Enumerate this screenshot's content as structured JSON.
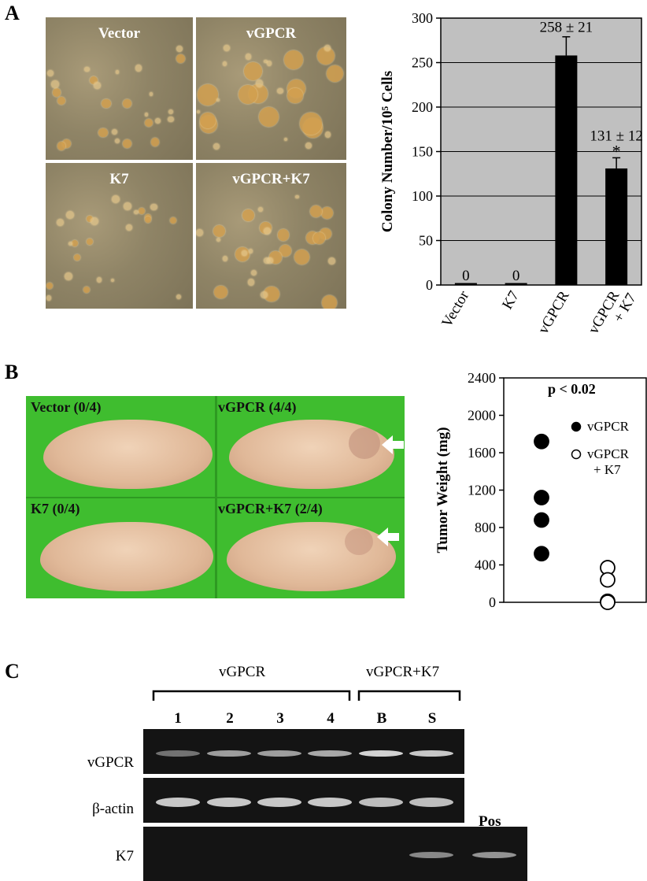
{
  "panels": {
    "a": "A",
    "b": "B",
    "c": "C"
  },
  "micrographs": [
    {
      "label": "Vector"
    },
    {
      "label": "vGPCR"
    },
    {
      "label": "K7"
    },
    {
      "label": "vGPCR+K7"
    }
  ],
  "mice": [
    {
      "label": "Vector (0/4)",
      "tumor": false
    },
    {
      "label": "vGPCR (4/4)",
      "tumor": true
    },
    {
      "label": "K7 (0/4)",
      "tumor": false
    },
    {
      "label": "vGPCR+K7 (2/4)",
      "tumor": true
    }
  ],
  "gel": {
    "group_labels": [
      "vGPCR",
      "vGPCR+K7"
    ],
    "lanes": [
      "1",
      "2",
      "3",
      "4",
      "B",
      "S"
    ],
    "rows": [
      {
        "label": "vGPCR",
        "intensity": [
          0.45,
          0.65,
          0.65,
          0.7,
          0.9,
          0.85
        ]
      },
      {
        "label": "β-actin",
        "intensity": [
          0.85,
          0.85,
          0.85,
          0.85,
          0.8,
          0.8
        ]
      },
      {
        "label": "K7",
        "intensity": [
          0,
          0,
          0,
          0,
          0,
          0.55
        ],
        "pos_intensity": 0.6
      }
    ],
    "pos_label": "Pos"
  },
  "chart_data": [
    {
      "type": "bar",
      "categories": [
        "Vector",
        "K7",
        "vGPCR",
        "vGPCR\n+ K7"
      ],
      "values": [
        0,
        0,
        258,
        131
      ],
      "errors": [
        0,
        0,
        21,
        12
      ],
      "bar_labels": [
        "0",
        "0",
        "258 ± 21",
        "131 ± 12"
      ],
      "significance": [
        "",
        "",
        "",
        "*"
      ],
      "ylabel": "Colony Number/10⁵ Cells",
      "ylim": [
        0,
        300
      ],
      "yticks": [
        0,
        50,
        100,
        150,
        200,
        250,
        300
      ],
      "grid": true,
      "background": "#c0c0c0",
      "bar_color": "#000000"
    },
    {
      "type": "scatter",
      "categories": [
        "vGPCR",
        "vGPCR\n+ K7"
      ],
      "series": [
        {
          "name": "vGPCR",
          "marker": "filled",
          "values": [
            1720,
            1120,
            880,
            520
          ]
        },
        {
          "name": "vGPCR\n+ K7",
          "marker": "open",
          "values": [
            370,
            240,
            10,
            0
          ]
        }
      ],
      "ylabel": "Tumor Weight (mg)",
      "ylim": [
        0,
        2400
      ],
      "yticks": [
        0,
        400,
        800,
        1200,
        1600,
        2000,
        2400
      ],
      "annotation": "p < 0.02",
      "legend_position": "top-right"
    }
  ]
}
